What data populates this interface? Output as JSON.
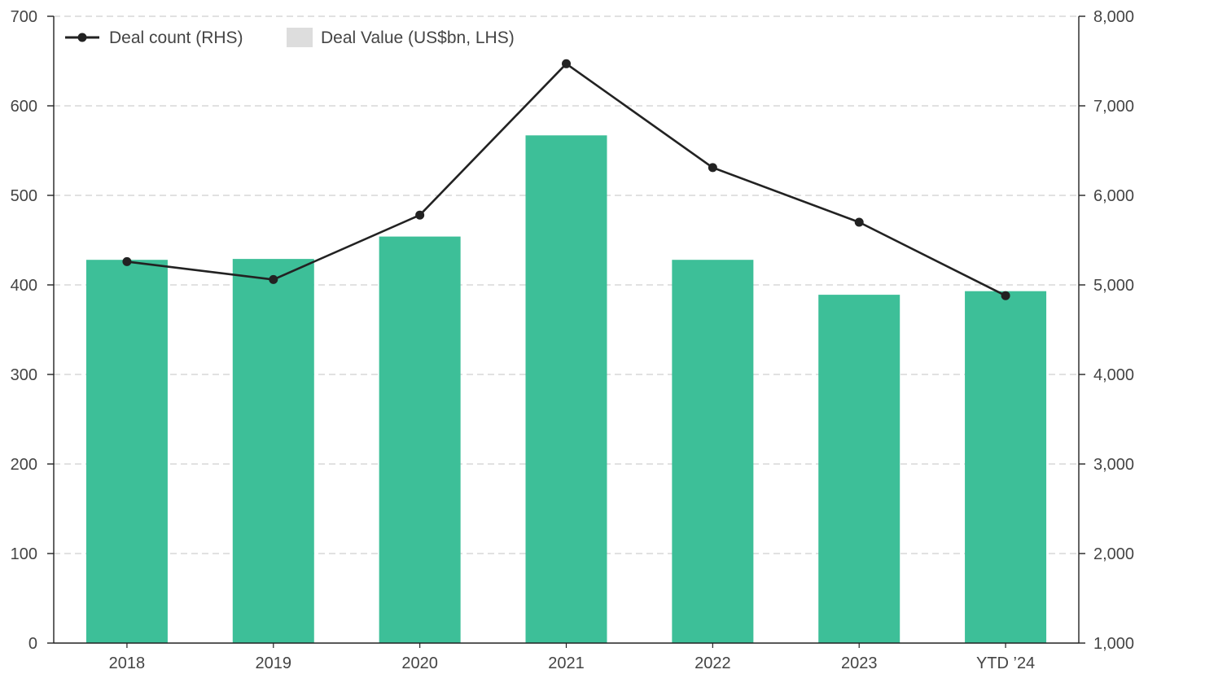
{
  "chart_data": {
    "type": "bar",
    "title": "",
    "xlabel": "",
    "categories": [
      "2018",
      "2019",
      "2020",
      "2021",
      "2022",
      "2023",
      "YTD ’24"
    ],
    "series": [
      {
        "name": "Deal Value (US$bn, LHS)",
        "type": "bar",
        "axis": "left",
        "color": "#3dbf98",
        "legend_swatch_color": "#dddddd",
        "values": [
          428,
          429,
          454,
          567,
          428,
          389,
          393
        ]
      },
      {
        "name": "Deal count (RHS)",
        "type": "line",
        "axis": "right",
        "color": "#222222",
        "values": [
          5260,
          5060,
          5780,
          7470,
          6310,
          5700,
          4880
        ]
      }
    ],
    "left_axis": {
      "ylim": [
        0,
        700
      ],
      "ticks": [
        0,
        100,
        200,
        300,
        400,
        500,
        600,
        700
      ],
      "tick_labels": [
        "0",
        "100",
        "200",
        "300",
        "400",
        "500",
        "600",
        "700"
      ]
    },
    "right_axis": {
      "ylim": [
        1000,
        8000
      ],
      "ticks": [
        1000,
        2000,
        3000,
        4000,
        5000,
        6000,
        7000,
        8000
      ],
      "tick_labels": [
        "1,000",
        "2,000",
        "3,000",
        "4,000",
        "5,000",
        "6,000",
        "7,000",
        "8,000"
      ]
    },
    "grid": true,
    "legend_position": "top-left"
  }
}
